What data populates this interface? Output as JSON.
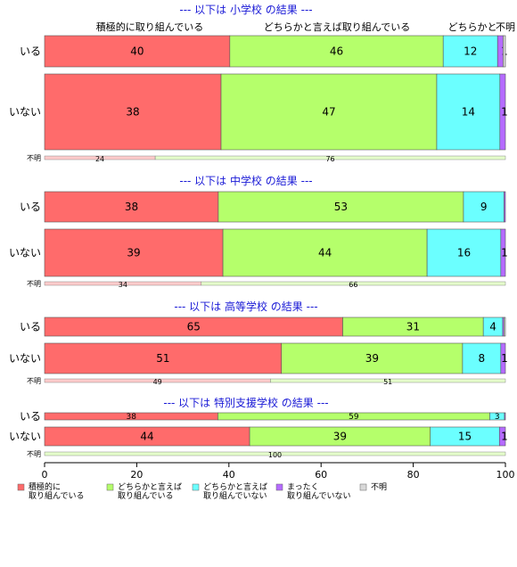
{
  "chart_data": {
    "type": "bar",
    "orientation": "horizontal-stacked-percent",
    "xlim": [
      0,
      100
    ],
    "x_ticks": [
      "0",
      "20",
      "40",
      "60",
      "80",
      "100"
    ],
    "column_headers": [
      "積極的に取り組んでいる",
      "どちらかと言えば取り組んでいる",
      "どちらかと",
      "不明"
    ],
    "colors": {
      "積極的に取り組んでいる": "#ff6b6b",
      "どちらかと言えば取り組んでいる": "#b5ff6b",
      "どちらかと言えば取り組んでいない": "#6bffff",
      "まったく取り組んでいない": "#b56bff",
      "不明": "#d9d9d9"
    },
    "legend": [
      {
        "key": "積極的に取り組んでいる",
        "lines": [
          "積極的に",
          "取り組んでいる"
        ]
      },
      {
        "key": "どちらかと言えば取り組んでいる",
        "lines": [
          "どちらかと言えば",
          "取り組んでいる"
        ]
      },
      {
        "key": "どちらかと言えば取り組んでいない",
        "lines": [
          "どちらかと言えば",
          "取り組んでいない"
        ]
      },
      {
        "key": "まったく取り組んでいない",
        "lines": [
          "まったく",
          "取り組んでいない"
        ]
      },
      {
        "key": "不明",
        "lines": [
          "不明"
        ]
      }
    ],
    "sections": [
      {
        "title": "--- 以下は 小学校 の結果 ---",
        "rows": [
          {
            "label": "いる",
            "values": [
              40.2,
              46.3,
              11.8,
              1.2,
              0.5
            ],
            "labels": [
              "40",
              "46",
              "12",
              "1",
              ""
            ]
          },
          {
            "label": "いない",
            "values": [
              38.3,
              46.8,
              13.7,
              1.2,
              0.0
            ],
            "labels": [
              "38",
              "47",
              "14",
              "1",
              ""
            ]
          }
        ],
        "unknown": {
          "label": "不明",
          "values": [
            24,
            76
          ],
          "labels": [
            "24",
            "76"
          ]
        }
      },
      {
        "title": "--- 以下は 中学校 の結果 ---",
        "rows": [
          {
            "label": "いる",
            "values": [
              37.7,
              53.2,
              8.8,
              0.3,
              0.0
            ],
            "labels": [
              "38",
              "53",
              "9",
              "",
              ""
            ]
          },
          {
            "label": "いない",
            "values": [
              38.7,
              44.3,
              16.0,
              1.0,
              0.0
            ],
            "labels": [
              "39",
              "44",
              "16",
              "1",
              ""
            ]
          }
        ],
        "unknown": {
          "label": "不明",
          "values": [
            34,
            66
          ],
          "labels": [
            "34",
            "66"
          ]
        }
      },
      {
        "title": "--- 以下は 高等学校 の結果 ---",
        "rows": [
          {
            "label": "いる",
            "values": [
              64.7,
              30.5,
              4.2,
              0.3,
              0.3
            ],
            "labels": [
              "65",
              "31",
              "4",
              "",
              ""
            ]
          },
          {
            "label": "いない",
            "values": [
              51.4,
              39.3,
              8.3,
              1.0,
              0.0
            ],
            "labels": [
              "51",
              "39",
              "8",
              "1",
              ""
            ]
          }
        ],
        "unknown": {
          "label": "不明",
          "values": [
            49,
            51
          ],
          "labels": [
            "49",
            "51"
          ]
        }
      },
      {
        "title": "--- 以下は 特別支援学校 の結果 ---",
        "rows": [
          {
            "label": "いる",
            "values": [
              37.6,
              59.0,
              3.2,
              0.2,
              0.0
            ],
            "labels": [
              "38",
              "59",
              "3",
              "",
              ""
            ]
          },
          {
            "label": "いない",
            "values": [
              44.5,
              39.2,
              15.0,
              1.3,
              0.0
            ],
            "labels": [
              "44",
              "39",
              "15",
              "1",
              ""
            ]
          }
        ],
        "unknown": {
          "label": "不明",
          "values": [
            0,
            100
          ],
          "labels": [
            "",
            "100"
          ]
        }
      }
    ]
  }
}
